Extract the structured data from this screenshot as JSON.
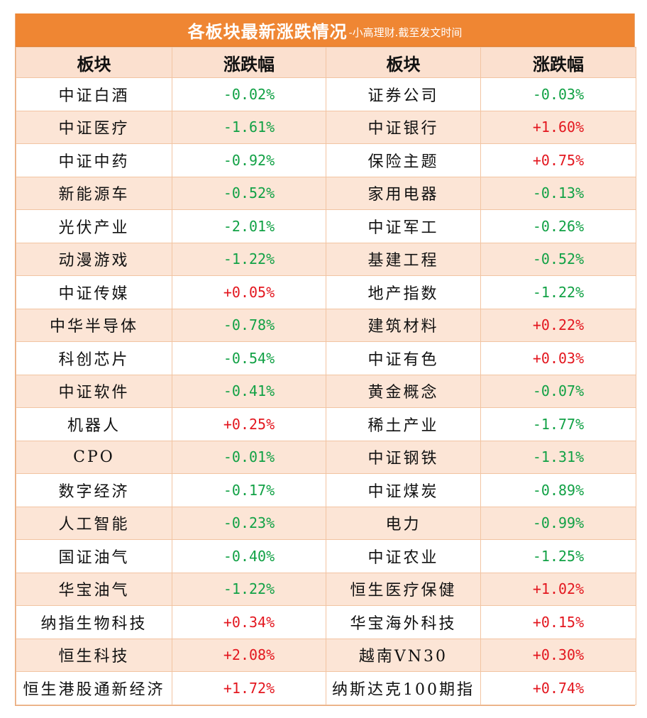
{
  "title": {
    "main": "各板块最新涨跌情况",
    "sub": "-小高理财.截至发文时间"
  },
  "header": {
    "col1": "板块",
    "col2": "涨跌幅",
    "col3": "板块",
    "col4": "涨跌幅"
  },
  "colors": {
    "title_bg": "#ef8633",
    "header_bg": "#fbe0cf",
    "stripe_bg": "#fce5d6",
    "up": "#e3171f",
    "down": "#11a145"
  },
  "rows": [
    {
      "left_name": "中证白酒",
      "left_change": "-0.02%",
      "right_name": "证券公司",
      "right_change": "-0.03%"
    },
    {
      "left_name": "中证医疗",
      "left_change": "-1.61%",
      "right_name": "中证银行",
      "right_change": "+1.60%"
    },
    {
      "left_name": "中证中药",
      "left_change": "-0.92%",
      "right_name": "保险主题",
      "right_change": "+0.75%"
    },
    {
      "left_name": "新能源车",
      "left_change": "-0.52%",
      "right_name": "家用电器",
      "right_change": "-0.13%"
    },
    {
      "left_name": "光伏产业",
      "left_change": "-2.01%",
      "right_name": "中证军工",
      "right_change": "-0.26%"
    },
    {
      "left_name": "动漫游戏",
      "left_change": "-1.22%",
      "right_name": "基建工程",
      "right_change": "-0.52%"
    },
    {
      "left_name": "中证传媒",
      "left_change": "+0.05%",
      "right_name": "地产指数",
      "right_change": "-1.22%"
    },
    {
      "left_name": "中华半导体",
      "left_change": "-0.78%",
      "right_name": "建筑材料",
      "right_change": "+0.22%"
    },
    {
      "left_name": "科创芯片",
      "left_change": "-0.54%",
      "right_name": "中证有色",
      "right_change": "+0.03%"
    },
    {
      "left_name": "中证软件",
      "left_change": "-0.41%",
      "right_name": "黄金概念",
      "right_change": "-0.07%"
    },
    {
      "left_name": "机器人",
      "left_change": "+0.25%",
      "right_name": "稀土产业",
      "right_change": "-1.77%"
    },
    {
      "left_name": "CPO",
      "left_change": "-0.01%",
      "right_name": "中证钢铁",
      "right_change": "-1.31%"
    },
    {
      "left_name": "数字经济",
      "left_change": "-0.17%",
      "right_name": "中证煤炭",
      "right_change": "-0.89%"
    },
    {
      "left_name": "人工智能",
      "left_change": "-0.23%",
      "right_name": "电力",
      "right_change": "-0.99%"
    },
    {
      "left_name": "国证油气",
      "left_change": "-0.40%",
      "right_name": "中证农业",
      "right_change": "-1.25%"
    },
    {
      "left_name": "华宝油气",
      "left_change": "-1.22%",
      "right_name": "恒生医疗保健",
      "right_change": "+1.02%"
    },
    {
      "left_name": "纳指生物科技",
      "left_change": "+0.34%",
      "right_name": "华宝海外科技",
      "right_change": "+0.15%"
    },
    {
      "left_name": "恒生科技",
      "left_change": "+2.08%",
      "right_name": "越南VN30",
      "right_change": "+0.30%"
    },
    {
      "left_name": "恒生港股通新经济",
      "left_change": "+1.72%",
      "right_name": "纳斯达克100期指",
      "right_change": "+0.74%"
    }
  ]
}
